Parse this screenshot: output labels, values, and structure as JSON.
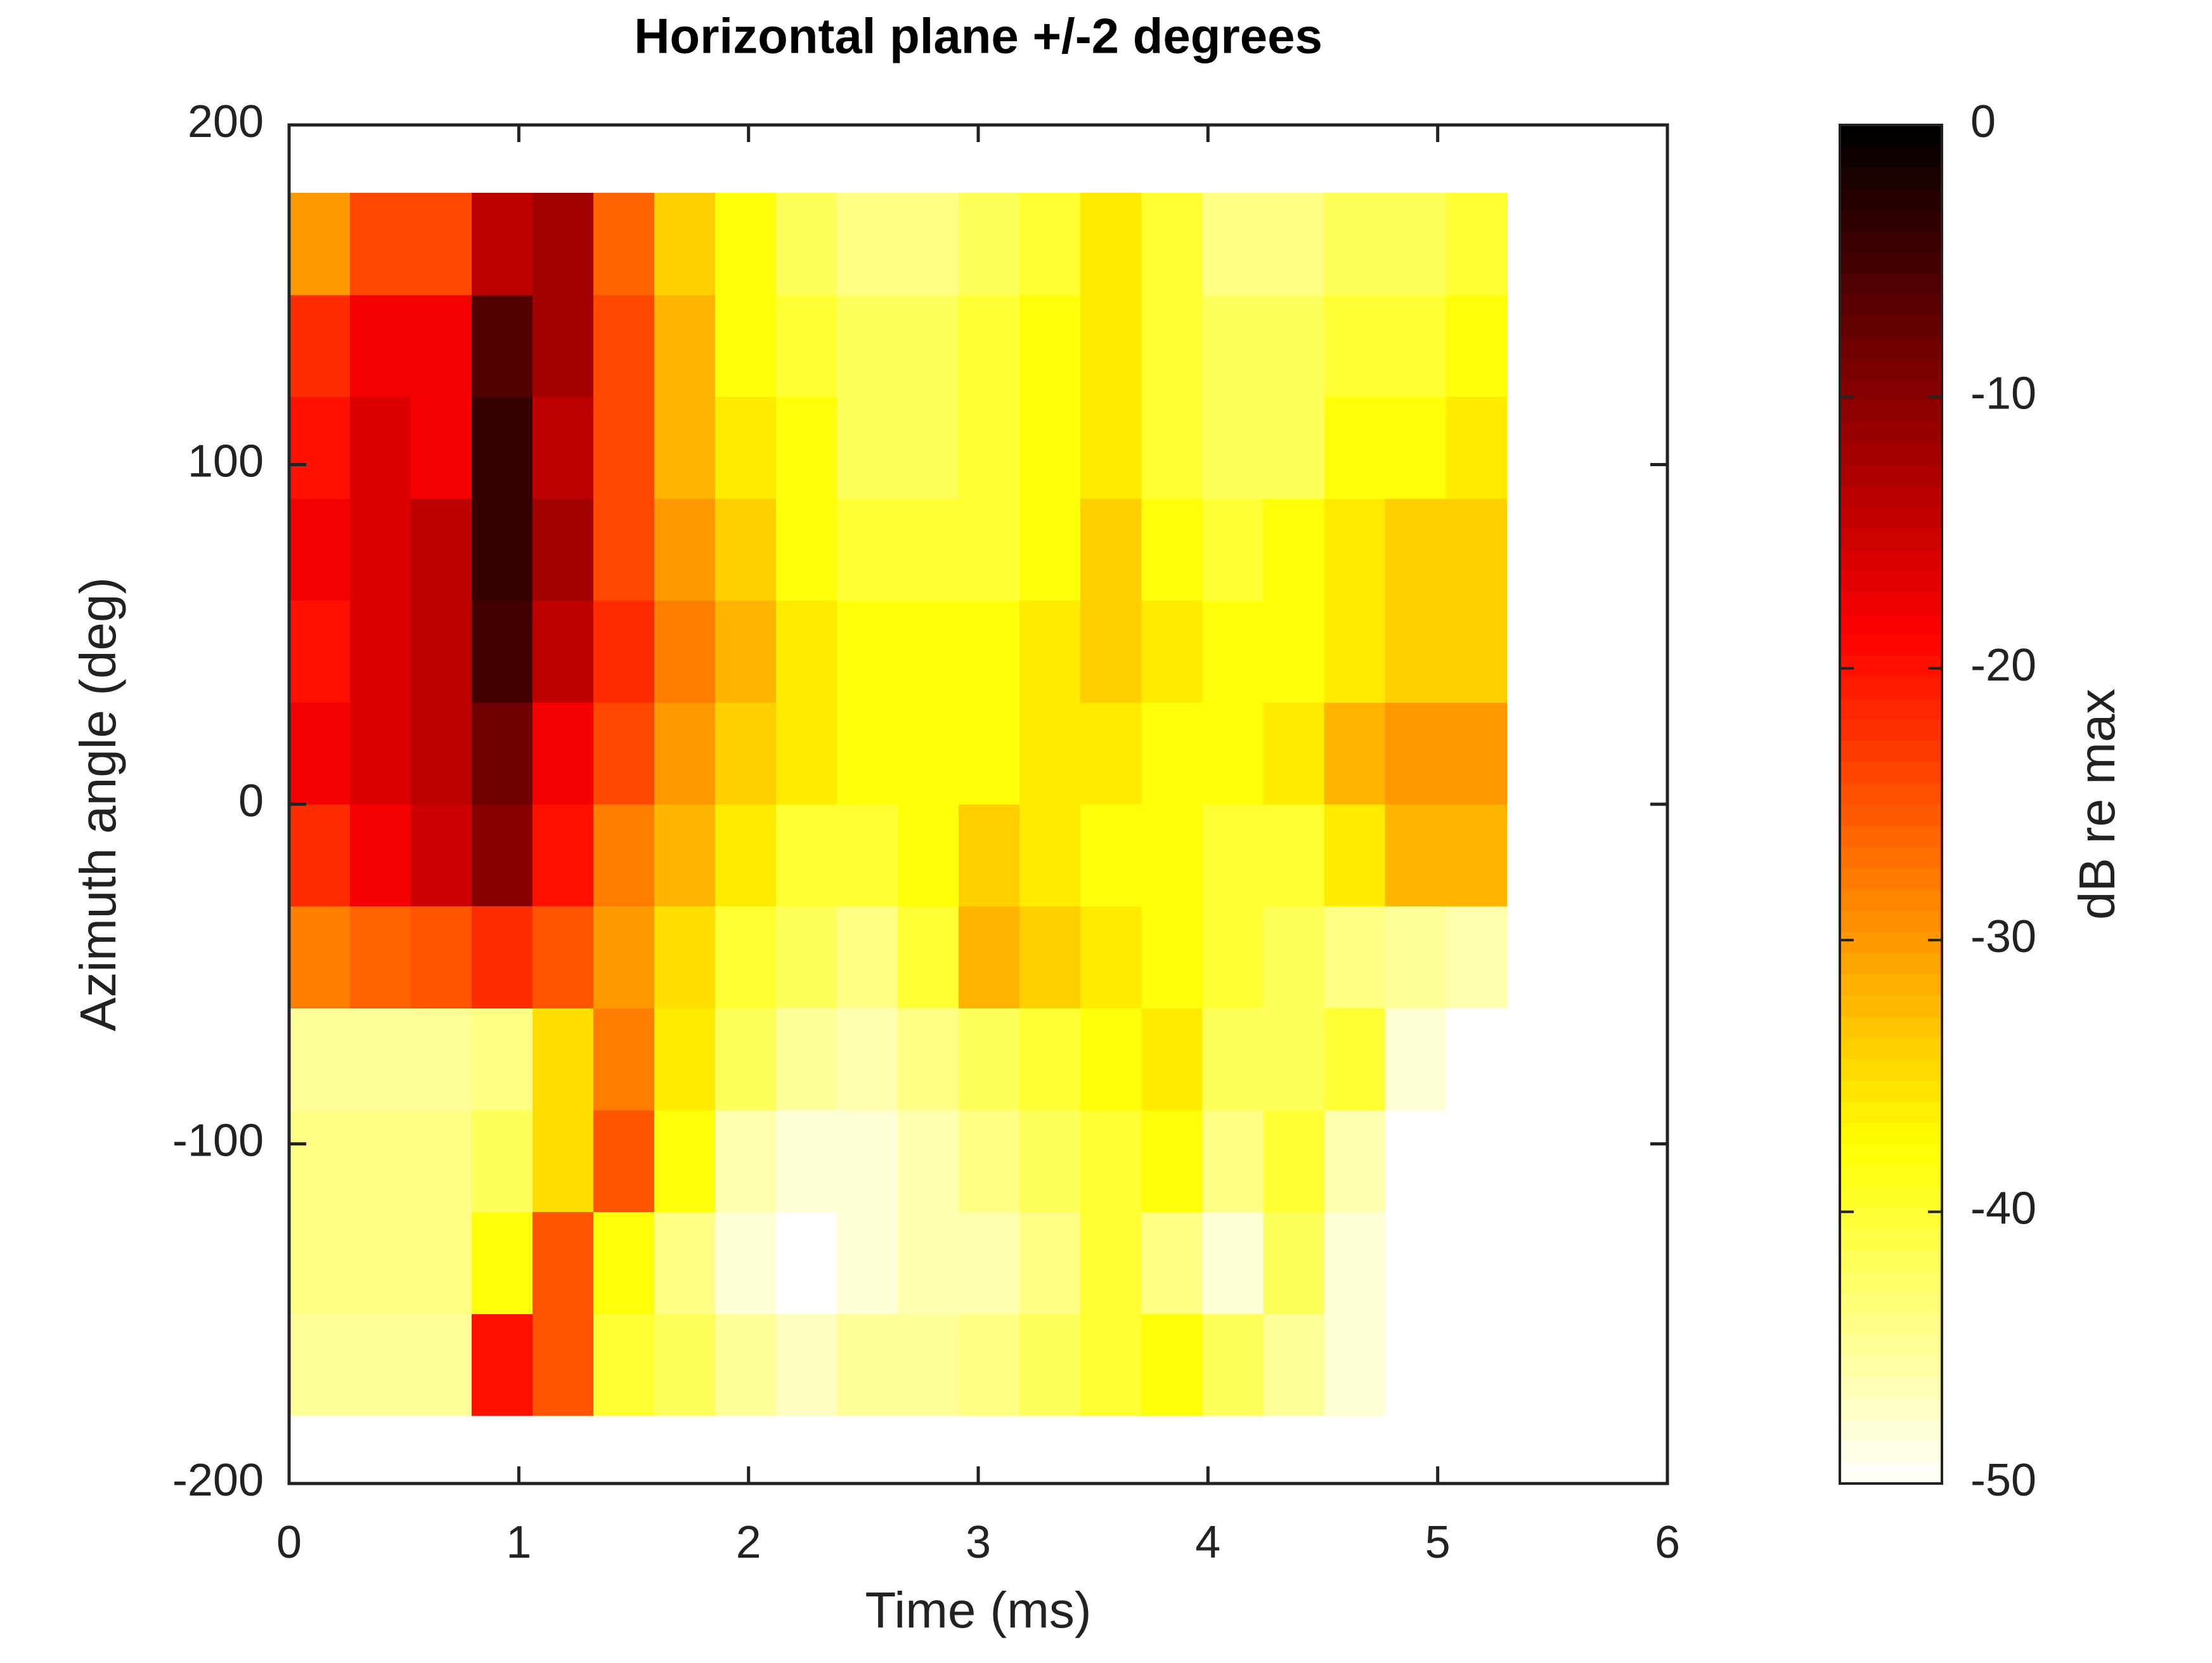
{
  "chart_data": {
    "type": "heatmap",
    "title": "Horizontal plane +/-2 degrees",
    "xlabel": "Time (ms)",
    "ylabel": "Azimuth angle (deg)",
    "colorbar_label": "dB re max",
    "colormap": "hot_r",
    "xlim": [
      0,
      6
    ],
    "xticks": [
      0,
      1,
      2,
      3,
      4,
      5,
      6
    ],
    "ylim": [
      -200,
      200
    ],
    "yticks": [
      -200,
      -100,
      0,
      100,
      200
    ],
    "clim": [
      -50,
      0
    ],
    "cticks": [
      -50,
      -40,
      -30,
      -20,
      -10,
      0
    ],
    "xbins": [
      0,
      0.265,
      0.53,
      0.795,
      1.06,
      1.325,
      1.59,
      1.855,
      2.12,
      2.385,
      2.65,
      2.915,
      3.18,
      3.445,
      3.71,
      3.975,
      4.24,
      4.505,
      4.77,
      5.035,
      5.3
    ],
    "ybins": [
      -180,
      -150,
      -120,
      -90,
      -60,
      -30,
      0,
      30,
      60,
      90,
      120,
      150,
      180
    ],
    "z": [
      [
        -45,
        -45,
        -45,
        -20,
        -25,
        -40,
        -42,
        -45,
        -47,
        -45,
        -45,
        -44,
        -42,
        -40,
        -38,
        -42,
        -45,
        -48,
        -50,
        -50
      ],
      [
        -44,
        -44,
        -44,
        -38,
        -25,
        -38,
        -44,
        -48,
        -50,
        -48,
        -46,
        -46,
        -44,
        -40,
        -44,
        -48,
        -42,
        -48,
        -50,
        -50
      ],
      [
        -44,
        -44,
        -44,
        -42,
        -35,
        -25,
        -38,
        -46,
        -48,
        -48,
        -46,
        -44,
        -42,
        -40,
        -38,
        -44,
        -40,
        -46,
        -50,
        -50
      ],
      [
        -45,
        -45,
        -45,
        -44,
        -35,
        -28,
        -36,
        -42,
        -45,
        -46,
        -44,
        -42,
        -40,
        -38,
        -36,
        -42,
        -42,
        -40,
        -48,
        -50
      ],
      [
        -28,
        -26,
        -25,
        -22,
        -25,
        -30,
        -35,
        -40,
        -42,
        -44,
        -40,
        -32,
        -34,
        -36,
        -38,
        -40,
        -42,
        -44,
        -45,
        -46
      ],
      [
        -22,
        -18,
        -15,
        -10,
        -20,
        -28,
        -32,
        -36,
        -40,
        -40,
        -38,
        -34,
        -36,
        -38,
        -38,
        -40,
        -40,
        -36,
        -32,
        -32
      ],
      [
        -18,
        -16,
        -14,
        -8,
        -18,
        -24,
        -30,
        -34,
        -36,
        -38,
        -38,
        -38,
        -36,
        -36,
        -38,
        -38,
        -36,
        -32,
        -30,
        -30
      ],
      [
        -20,
        -16,
        -14,
        -5,
        -14,
        -22,
        -28,
        -32,
        -36,
        -38,
        -38,
        -38,
        -36,
        -34,
        -36,
        -38,
        -38,
        -36,
        -34,
        -34
      ],
      [
        -18,
        -16,
        -14,
        -4,
        -12,
        -24,
        -30,
        -34,
        -38,
        -40,
        -40,
        -40,
        -38,
        -34,
        -38,
        -40,
        -38,
        -36,
        -34,
        -34
      ],
      [
        -20,
        -16,
        -18,
        -4,
        -14,
        -24,
        -32,
        -36,
        -38,
        -42,
        -42,
        -40,
        -38,
        -36,
        -40,
        -42,
        -42,
        -38,
        -38,
        -36
      ],
      [
        -22,
        -18,
        -18,
        -6,
        -12,
        -24,
        -32,
        -38,
        -40,
        -42,
        -42,
        -40,
        -38,
        -36,
        -40,
        -42,
        -42,
        -40,
        -40,
        -38
      ],
      [
        -30,
        -24,
        -24,
        -14,
        -12,
        -26,
        -34,
        -38,
        -42,
        -44,
        -44,
        -42,
        -40,
        -36,
        -40,
        -44,
        -44,
        -42,
        -42,
        -40
      ]
    ]
  }
}
